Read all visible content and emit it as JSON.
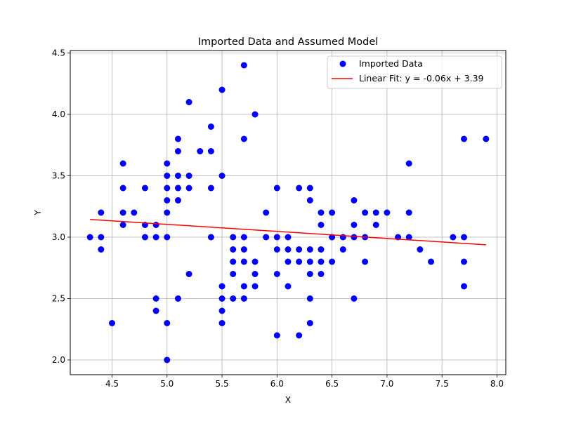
{
  "chart_data": {
    "type": "scatter",
    "title": "Imported Data and Assumed Model",
    "xlabel": "X",
    "ylabel": "Y",
    "xlim": [
      4.12,
      8.08
    ],
    "ylim": [
      1.88,
      4.52
    ],
    "xticks": [
      4.5,
      5.0,
      5.5,
      6.0,
      6.5,
      7.0,
      7.5,
      8.0
    ],
    "xtick_labels": [
      "4.5",
      "5.0",
      "5.5",
      "6.0",
      "6.5",
      "7.0",
      "7.5",
      "8.0"
    ],
    "yticks": [
      2.0,
      2.5,
      3.0,
      3.5,
      4.0,
      4.5
    ],
    "ytick_labels": [
      "2.0",
      "2.5",
      "3.0",
      "3.5",
      "4.0",
      "4.5"
    ],
    "grid": true,
    "legend_position": "top-right",
    "series": [
      {
        "name": "Imported Data",
        "kind": "scatter",
        "color": "#0000ff",
        "points": [
          [
            4.3,
            3.0
          ],
          [
            4.4,
            3.2
          ],
          [
            4.4,
            3.0
          ],
          [
            4.4,
            2.9
          ],
          [
            4.5,
            2.3
          ],
          [
            4.6,
            3.6
          ],
          [
            4.6,
            3.4
          ],
          [
            4.6,
            3.2
          ],
          [
            4.6,
            3.1
          ],
          [
            4.7,
            3.2
          ],
          [
            4.8,
            3.4
          ],
          [
            4.8,
            3.1
          ],
          [
            4.8,
            3.0
          ],
          [
            4.9,
            3.1
          ],
          [
            4.9,
            3.0
          ],
          [
            4.9,
            2.5
          ],
          [
            4.9,
            2.4
          ],
          [
            5.0,
            3.6
          ],
          [
            5.0,
            3.5
          ],
          [
            5.0,
            3.4
          ],
          [
            5.0,
            3.3
          ],
          [
            5.0,
            3.2
          ],
          [
            5.0,
            3.0
          ],
          [
            5.0,
            2.3
          ],
          [
            5.0,
            2.0
          ],
          [
            5.1,
            3.8
          ],
          [
            5.1,
            3.7
          ],
          [
            5.1,
            3.5
          ],
          [
            5.1,
            3.4
          ],
          [
            5.1,
            3.3
          ],
          [
            5.1,
            2.5
          ],
          [
            5.2,
            4.1
          ],
          [
            5.2,
            3.5
          ],
          [
            5.2,
            3.4
          ],
          [
            5.2,
            2.7
          ],
          [
            5.3,
            3.7
          ],
          [
            5.4,
            3.9
          ],
          [
            5.4,
            3.7
          ],
          [
            5.4,
            3.4
          ],
          [
            5.4,
            3.0
          ],
          [
            5.5,
            4.2
          ],
          [
            5.5,
            3.5
          ],
          [
            5.5,
            2.6
          ],
          [
            5.5,
            2.5
          ],
          [
            5.5,
            2.4
          ],
          [
            5.5,
            2.3
          ],
          [
            5.6,
            3.0
          ],
          [
            5.6,
            2.9
          ],
          [
            5.6,
            2.8
          ],
          [
            5.6,
            2.7
          ],
          [
            5.6,
            2.5
          ],
          [
            5.7,
            4.4
          ],
          [
            5.7,
            3.8
          ],
          [
            5.7,
            3.0
          ],
          [
            5.7,
            2.9
          ],
          [
            5.7,
            2.8
          ],
          [
            5.7,
            2.6
          ],
          [
            5.7,
            2.5
          ],
          [
            5.8,
            4.0
          ],
          [
            5.8,
            2.8
          ],
          [
            5.8,
            2.7
          ],
          [
            5.8,
            2.6
          ],
          [
            5.9,
            3.2
          ],
          [
            5.9,
            3.0
          ],
          [
            6.0,
            3.4
          ],
          [
            6.0,
            3.0
          ],
          [
            6.0,
            2.9
          ],
          [
            6.0,
            2.7
          ],
          [
            6.0,
            2.2
          ],
          [
            6.1,
            3.0
          ],
          [
            6.1,
            2.9
          ],
          [
            6.1,
            2.8
          ],
          [
            6.1,
            2.6
          ],
          [
            6.2,
            3.4
          ],
          [
            6.2,
            2.9
          ],
          [
            6.2,
            2.8
          ],
          [
            6.2,
            2.2
          ],
          [
            6.3,
            3.4
          ],
          [
            6.3,
            3.3
          ],
          [
            6.3,
            2.9
          ],
          [
            6.3,
            2.8
          ],
          [
            6.3,
            2.7
          ],
          [
            6.3,
            2.5
          ],
          [
            6.3,
            2.3
          ],
          [
            6.4,
            3.2
          ],
          [
            6.4,
            3.1
          ],
          [
            6.4,
            2.9
          ],
          [
            6.4,
            2.8
          ],
          [
            6.4,
            2.7
          ],
          [
            6.5,
            3.2
          ],
          [
            6.5,
            3.0
          ],
          [
            6.5,
            2.8
          ],
          [
            6.6,
            3.0
          ],
          [
            6.6,
            2.9
          ],
          [
            6.7,
            3.3
          ],
          [
            6.7,
            3.1
          ],
          [
            6.7,
            3.0
          ],
          [
            6.7,
            2.5
          ],
          [
            6.8,
            3.2
          ],
          [
            6.8,
            3.0
          ],
          [
            6.8,
            2.8
          ],
          [
            6.9,
            3.2
          ],
          [
            6.9,
            3.1
          ],
          [
            7.0,
            3.2
          ],
          [
            7.1,
            3.0
          ],
          [
            7.2,
            3.6
          ],
          [
            7.2,
            3.2
          ],
          [
            7.2,
            3.0
          ],
          [
            7.3,
            2.9
          ],
          [
            7.4,
            2.8
          ],
          [
            7.6,
            3.0
          ],
          [
            7.7,
            3.8
          ],
          [
            7.7,
            3.0
          ],
          [
            7.7,
            2.8
          ],
          [
            7.7,
            2.6
          ],
          [
            7.9,
            3.8
          ]
        ]
      },
      {
        "name": "Linear Fit: y = -0.06x + 3.39",
        "kind": "line",
        "color": "#ff0000",
        "points": [
          [
            4.3,
            3.1445
          ],
          [
            7.9,
            2.938
          ]
        ]
      }
    ]
  }
}
